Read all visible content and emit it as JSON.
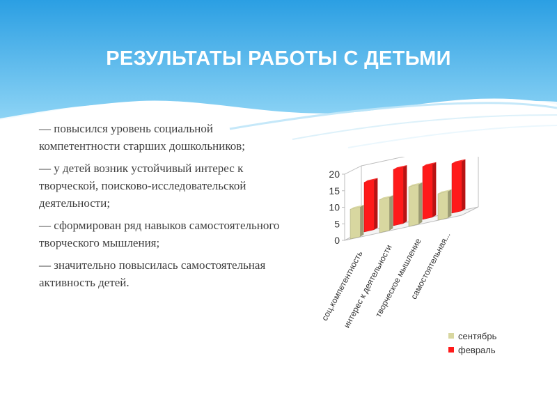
{
  "slide": {
    "title": "РЕЗУЛЬТАТЫ РАБОТЫ С ДЕТЬМИ",
    "bullets": [
      "— повысился уровень социальной компетентности старших дошкольников;",
      "— у детей возник устойчивый интерес к творческой, поисково-исследовательской деятельности;",
      "— сформирован ряд навыков самостоятельного творческого мышления;",
      "— значительно повысилась самостоятельная активность детей."
    ],
    "colors": {
      "header_top": "#2b9fe3",
      "header_bottom": "#8ed4f5",
      "text": "#404040"
    }
  },
  "chart_data": {
    "type": "bar",
    "categories": [
      "соц.компетентность",
      "интерес к деятельности",
      "творческое мышление",
      "самостоятельная..."
    ],
    "series": [
      {
        "name": "сентябрь",
        "values": [
          9,
          10,
          12,
          8
        ],
        "color": "#d8d7a0"
      },
      {
        "name": "февраль",
        "values": [
          15,
          17,
          16,
          15
        ],
        "color": "#ff1a1a"
      }
    ],
    "yticks": [
      "0",
      "5",
      "10",
      "15",
      "20"
    ],
    "ylim": [
      0,
      20
    ],
    "legend": "bottom-right",
    "grid": false
  }
}
